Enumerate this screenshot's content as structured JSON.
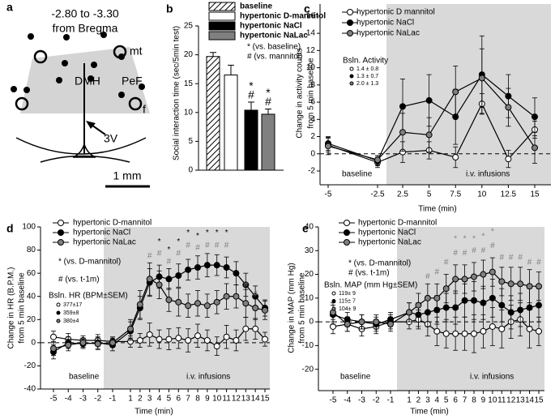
{
  "diagram": {
    "label": "a",
    "title": [
      "-2.80 to -3.30",
      "from Bregma"
    ],
    "labels": [
      "mt",
      "DMH",
      "PeF",
      "f",
      "3V"
    ],
    "scale_bar": "1 mm"
  },
  "chart_data": [
    {
      "panel": "b",
      "type": "bar",
      "ylabel": "Social interaction time (sec/5min test)",
      "categories": [
        "baseline",
        "hypertonic D-mannitol",
        "hypertonic NaCl",
        "hypertonic NaLac"
      ],
      "values": [
        19.7,
        16.5,
        10.4,
        9.7
      ],
      "errors": [
        0.7,
        1.7,
        1.4,
        0.9
      ],
      "colors": [
        "#ffffff",
        "#ffffff",
        "#000000",
        "#808080"
      ],
      "hatch": [
        true,
        false,
        false,
        false
      ],
      "ylim": [
        0,
        25
      ],
      "yticks": [
        0,
        5,
        10,
        15,
        20,
        25
      ],
      "annotations": [
        {
          "text": "*",
          "category": 2
        },
        {
          "text": "#",
          "category": 2
        },
        {
          "text": "*",
          "category": 3
        },
        {
          "text": "#",
          "category": 3
        }
      ],
      "notes": [
        "* (vs. baseline)",
        "# (vs. mannitol)"
      ]
    },
    {
      "panel": "c",
      "type": "line",
      "xlabel": "Time (min)",
      "ylabel": [
        "Change in activity counts",
        "from 5 min baseline"
      ],
      "x": [
        -5,
        -2.5,
        2.5,
        5,
        7.5,
        10,
        12.5,
        15
      ],
      "xticks": [
        -5,
        -2.5,
        2.5,
        5,
        7.5,
        10,
        12.5,
        15
      ],
      "ylim": [
        -3.6,
        17.4
      ],
      "yticks": [
        -2,
        0,
        2,
        4,
        6,
        8,
        10,
        12,
        14,
        16
      ],
      "reference_line": 0,
      "series": [
        {
          "name": "hypertonic D mannitol",
          "color": "#ffffff",
          "values": [
            1.0,
            -1.0,
            0.2,
            0.4,
            -0.4,
            5.8,
            -0.6,
            2.8
          ],
          "errors": [
            0.8,
            0.6,
            1.2,
            1.0,
            1.2,
            1.2,
            1.0,
            1.0
          ]
        },
        {
          "name": "hypertonic NaCl",
          "color": "#000000",
          "values": [
            1.2,
            -0.8,
            5.5,
            6.2,
            4.3,
            9.2,
            6.7,
            4.3
          ],
          "errors": [
            0.8,
            0.6,
            3.2,
            3.0,
            3.2,
            4.5,
            2.5,
            2.2
          ]
        },
        {
          "name": "hypertonic NaLac",
          "color": "#808080",
          "values": [
            0.9,
            -0.7,
            2.5,
            2.2,
            7.2,
            8.8,
            5.4,
            0.7
          ],
          "errors": [
            1.0,
            0.5,
            2.2,
            2.0,
            3.0,
            3.4,
            2.2,
            1.8
          ]
        }
      ],
      "stats_title": "Bsln. Activity",
      "baseline_stats": [
        "1.4 ± 0.8",
        "1.3 ± 0.7",
        "2.0 ± 1.3"
      ],
      "regions": [
        "baseline",
        "i.v. infusions"
      ]
    },
    {
      "panel": "d",
      "type": "line",
      "xlabel": "Time (min)",
      "ylabel": [
        "Change in HR (B.P.M.)",
        "from 5 min baseline"
      ],
      "x": [
        -5,
        -4,
        -3,
        -2,
        -1,
        1,
        2,
        3,
        4,
        5,
        6,
        7,
        8,
        9,
        10,
        11,
        12,
        13,
        14,
        15
      ],
      "xticks": [
        -5,
        -4,
        -3,
        -2,
        -1,
        1,
        2,
        3,
        4,
        5,
        6,
        7,
        8,
        9,
        10,
        11,
        12,
        13,
        14,
        15
      ],
      "ylim": [
        -40,
        100
      ],
      "yticks": [
        -40,
        -20,
        0,
        20,
        40,
        60,
        80,
        100
      ],
      "reference_line": 0,
      "series": [
        {
          "name": "hypertonic D-mannitol",
          "color": "#ffffff",
          "values": [
            5,
            3,
            2,
            2,
            1,
            1,
            2,
            7,
            3,
            3,
            4,
            2,
            6,
            2,
            -3,
            5,
            2,
            12,
            12,
            3
          ],
          "errors": [
            5,
            5,
            4,
            5,
            4,
            5,
            6,
            10,
            8,
            9,
            9,
            10,
            10,
            9,
            8,
            10,
            9,
            10,
            9,
            6
          ]
        },
        {
          "name": "hypertonic NaCl",
          "color": "#000000",
          "values": [
            -8,
            0,
            -1,
            0,
            -2,
            10,
            30,
            52,
            57,
            55,
            58,
            63,
            65,
            67,
            67,
            65,
            60,
            50,
            40,
            30
          ],
          "errors": [
            6,
            5,
            4,
            5,
            5,
            8,
            10,
            12,
            10,
            9,
            10,
            9,
            10,
            10,
            9,
            9,
            10,
            10,
            9,
            7
          ]
        },
        {
          "name": "hypertonic NaLac",
          "color": "#808080",
          "values": [
            -5,
            -2,
            0,
            -1,
            0,
            12,
            33,
            55,
            50,
            37,
            35,
            32,
            34,
            32,
            35,
            40,
            40,
            34,
            30,
            28
          ],
          "errors": [
            6,
            5,
            4,
            5,
            4,
            8,
            12,
            14,
            12,
            10,
            12,
            10,
            11,
            10,
            10,
            11,
            10,
            12,
            10,
            8
          ]
        }
      ],
      "notes": [
        "* (vs. D-mannitol)",
        "# (vs. t-1m)"
      ],
      "stats_title": "Bsln. HR (BPM±SEM)",
      "baseline_stats": [
        "377±17",
        "359±8",
        "380±4"
      ],
      "regions": [
        "baseline",
        "i.v. infusions"
      ],
      "annotations": [
        {
          "text": "*",
          "x": 4,
          "y": 87,
          "color": "#000000"
        },
        {
          "text": "*",
          "x": 5,
          "y": 80,
          "color": "#000000"
        },
        {
          "text": "*",
          "x": 6,
          "y": 87,
          "color": "#000000"
        },
        {
          "text": "*",
          "x": 7,
          "y": 95,
          "color": "#000000"
        },
        {
          "text": "*",
          "x": 8,
          "y": 92,
          "color": "#000000"
        },
        {
          "text": "*",
          "x": 9,
          "y": 95,
          "color": "#000000"
        },
        {
          "text": "*",
          "x": 10,
          "y": 95,
          "color": "#000000"
        },
        {
          "text": "*",
          "x": 11,
          "y": 95,
          "color": "#000000"
        },
        {
          "text": "#",
          "x": 3,
          "y": 75,
          "color": "#808080"
        },
        {
          "text": "#",
          "x": 4,
          "y": 77,
          "color": "#808080"
        },
        {
          "text": "#",
          "x": 5,
          "y": 70,
          "color": "#808080"
        },
        {
          "text": "#",
          "x": 6,
          "y": 77,
          "color": "#808080"
        },
        {
          "text": "#",
          "x": 7,
          "y": 84,
          "color": "#808080"
        },
        {
          "text": "#",
          "x": 8,
          "y": 82,
          "color": "#808080"
        },
        {
          "text": "#",
          "x": 9,
          "y": 84,
          "color": "#808080"
        },
        {
          "text": "#",
          "x": 10,
          "y": 84,
          "color": "#808080"
        },
        {
          "text": "#",
          "x": 11,
          "y": 84,
          "color": "#808080"
        },
        {
          "text": "#",
          "x": 13,
          "y": 50,
          "color": "#808080"
        },
        {
          "text": "#",
          "x": 14,
          "y": 42,
          "color": "#808080"
        }
      ]
    },
    {
      "panel": "e",
      "type": "line",
      "xlabel": "Time (min)",
      "ylabel": [
        "Change in MAP (mm Hg)",
        "from 5 min baseline"
      ],
      "x": [
        -5,
        -4,
        -3,
        -2,
        -1,
        1,
        2,
        3,
        4,
        5,
        6,
        7,
        8,
        9,
        10,
        11,
        12,
        13,
        14,
        15
      ],
      "xticks": [
        -5,
        -4,
        -3,
        -2,
        -1,
        1,
        2,
        3,
        4,
        5,
        6,
        7,
        8,
        9,
        10,
        11,
        12,
        13,
        14,
        15
      ],
      "ylim": [
        -29,
        40
      ],
      "yticks": [
        -20,
        -10,
        0,
        10,
        20,
        30,
        40
      ],
      "reference_line": 0,
      "series": [
        {
          "name": "hypertonic D-mannitol",
          "color": "#ffffff",
          "values": [
            -2,
            -1,
            -3,
            -2,
            0,
            0,
            1,
            -1,
            -4,
            -5,
            -5,
            -5,
            -5,
            -4,
            -2,
            -3,
            0,
            1,
            -3,
            -4
          ],
          "errors": [
            3,
            3,
            3,
            3,
            3,
            3,
            4,
            5,
            6,
            6,
            7,
            7,
            8,
            7,
            8,
            8,
            7,
            7,
            8,
            6
          ]
        },
        {
          "name": "hypertonic NaCl",
          "color": "#000000",
          "values": [
            3,
            1,
            0,
            -1,
            1,
            4,
            3,
            4,
            5,
            6,
            6,
            9,
            9,
            8,
            10,
            7,
            4,
            5,
            6,
            7
          ],
          "errors": [
            4,
            3,
            3,
            3,
            3,
            4,
            5,
            6,
            6,
            6,
            7,
            7,
            8,
            7,
            8,
            7,
            7,
            7,
            8,
            7
          ]
        },
        {
          "name": "hypertonic NaLac",
          "color": "#808080",
          "values": [
            4,
            -1,
            0,
            0,
            -1,
            4,
            7,
            10,
            10,
            14,
            18,
            18,
            19,
            20,
            21,
            17,
            16,
            16,
            15,
            15
          ],
          "errors": [
            4,
            3,
            3,
            3,
            3,
            4,
            5,
            6,
            6,
            6,
            6,
            6,
            6,
            6,
            6,
            6,
            7,
            7,
            7,
            6
          ]
        }
      ],
      "notes": [
        "* (vs. D-mannitol)",
        "# (vs. t-1m)"
      ],
      "stats_title": "Bsln. MAP (mm Hg±SEM)",
      "baseline_stats": [
        "119± 9",
        "115± 7",
        "104± 9"
      ],
      "regions": [
        "baseline",
        "i.v. infusions"
      ],
      "annotations": [
        {
          "text": "*",
          "x": 6,
          "y": 35,
          "color": "#808080"
        },
        {
          "text": "*",
          "x": 7,
          "y": 35,
          "color": "#808080"
        },
        {
          "text": "*",
          "x": 8,
          "y": 35,
          "color": "#808080"
        },
        {
          "text": "*",
          "x": 9,
          "y": 36,
          "color": "#808080"
        },
        {
          "text": "*",
          "x": 10,
          "y": 38,
          "color": "#808080"
        },
        {
          "text": "#",
          "x": 3,
          "y": 19,
          "color": "#808080"
        },
        {
          "text": "#",
          "x": 4,
          "y": 21,
          "color": "#808080"
        },
        {
          "text": "#",
          "x": 5,
          "y": 25,
          "color": "#808080"
        },
        {
          "text": "#",
          "x": 6,
          "y": 29,
          "color": "#808080"
        },
        {
          "text": "#",
          "x": 7,
          "y": 29,
          "color": "#808080"
        },
        {
          "text": "#",
          "x": 8,
          "y": 30,
          "color": "#808080"
        },
        {
          "text": "#",
          "x": 9,
          "y": 30,
          "color": "#808080"
        },
        {
          "text": "#",
          "x": 10,
          "y": 32,
          "color": "#808080"
        },
        {
          "text": "#",
          "x": 11,
          "y": 27,
          "color": "#808080"
        },
        {
          "text": "#",
          "x": 12,
          "y": 27,
          "color": "#808080"
        },
        {
          "text": "#",
          "x": 13,
          "y": 27,
          "color": "#808080"
        },
        {
          "text": "#",
          "x": 14,
          "y": 25,
          "color": "#808080"
        },
        {
          "text": "#",
          "x": 15,
          "y": 25,
          "color": "#808080"
        }
      ]
    }
  ]
}
